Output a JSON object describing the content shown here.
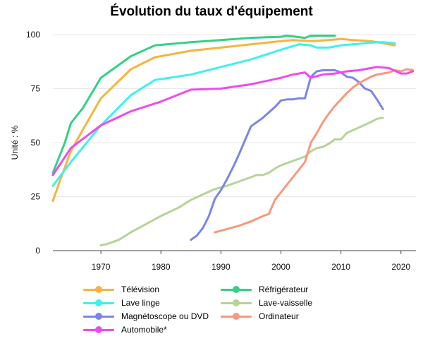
{
  "chart_data": {
    "type": "line",
    "title": "Évolution du taux d'équipement",
    "ylabel": "Unité : %",
    "xlabel": "",
    "xlim": [
      1962,
      2022.5
    ],
    "ylim": [
      0,
      100
    ],
    "xticks": [
      1970,
      1980,
      1990,
      2000,
      2010,
      2020
    ],
    "yticks": [
      0,
      25,
      50,
      75,
      100
    ],
    "grid": "horizontal",
    "legend_position": "bottom",
    "series": [
      {
        "name": "Télévision",
        "color": "#f6b43d",
        "points": [
          [
            1962,
            23
          ],
          [
            1963,
            31
          ],
          [
            1965,
            46
          ],
          [
            1967,
            56
          ],
          [
            1970,
            70.5
          ],
          [
            1975,
            84
          ],
          [
            1979,
            89.5
          ],
          [
            1985,
            92.5
          ],
          [
            1990,
            94
          ],
          [
            1995,
            95.5
          ],
          [
            2000,
            97
          ],
          [
            2002,
            97.5
          ],
          [
            2005,
            97
          ],
          [
            2008,
            97.5
          ],
          [
            2010,
            98
          ],
          [
            2012,
            97.5
          ],
          [
            2015,
            97
          ],
          [
            2017,
            96
          ],
          [
            2019,
            95
          ]
        ]
      },
      {
        "name": "Réfrigérateur",
        "color": "#34d086",
        "points": [
          [
            1962,
            36
          ],
          [
            1964,
            50
          ],
          [
            1965,
            59
          ],
          [
            1967,
            66
          ],
          [
            1970,
            80
          ],
          [
            1972,
            84
          ],
          [
            1975,
            90
          ],
          [
            1979,
            95
          ],
          [
            1985,
            96.5
          ],
          [
            1990,
            97.5
          ],
          [
            1995,
            98.5
          ],
          [
            2000,
            99
          ],
          [
            2001,
            99.5
          ],
          [
            2004,
            98.5
          ],
          [
            2005,
            99.5
          ],
          [
            2009,
            99.5
          ]
        ]
      },
      {
        "name": "Lave linge",
        "color": "#3ff1ec",
        "points": [
          [
            1962,
            30
          ],
          [
            1965,
            41
          ],
          [
            1970,
            58
          ],
          [
            1975,
            72
          ],
          [
            1979,
            79
          ],
          [
            1985,
            81.5
          ],
          [
            1990,
            85
          ],
          [
            1995,
            88.5
          ],
          [
            2000,
            93
          ],
          [
            2003,
            95.5
          ],
          [
            2005,
            95
          ],
          [
            2006,
            94
          ],
          [
            2008,
            94
          ],
          [
            2009,
            94.5
          ],
          [
            2010,
            95
          ],
          [
            2012,
            95.5
          ],
          [
            2014,
            96
          ],
          [
            2016,
            96.5
          ],
          [
            2017,
            96.5
          ],
          [
            2019,
            96
          ]
        ]
      },
      {
        "name": "Lave-vaisselle",
        "color": "#b7d399",
        "points": [
          [
            1970,
            2.5
          ],
          [
            1971,
            3
          ],
          [
            1973,
            5
          ],
          [
            1975,
            8.5
          ],
          [
            1978,
            13
          ],
          [
            1980,
            16
          ],
          [
            1983,
            20
          ],
          [
            1985,
            23.5
          ],
          [
            1987,
            26
          ],
          [
            1989,
            28.5
          ],
          [
            1991,
            30
          ],
          [
            1993,
            32
          ],
          [
            1995,
            34
          ],
          [
            1996,
            35
          ],
          [
            1997,
            35
          ],
          [
            1998,
            36
          ],
          [
            1999,
            38
          ],
          [
            2000,
            39.5
          ],
          [
            2002,
            41.5
          ],
          [
            2004,
            43.5
          ],
          [
            2005,
            46
          ],
          [
            2006,
            47.5
          ],
          [
            2007,
            48
          ],
          [
            2008,
            49.5
          ],
          [
            2009,
            51.5
          ],
          [
            2010,
            51.5
          ],
          [
            2011,
            54.5
          ],
          [
            2013,
            57
          ],
          [
            2015,
            59.5
          ],
          [
            2016,
            61
          ],
          [
            2017,
            61.5
          ]
        ]
      },
      {
        "name": "Magnétoscope ou DVD",
        "color": "#7b85e8",
        "points": [
          [
            1985,
            5
          ],
          [
            1986,
            7
          ],
          [
            1987,
            10.5
          ],
          [
            1988,
            16
          ],
          [
            1989,
            24
          ],
          [
            1990,
            28
          ],
          [
            1991,
            33
          ],
          [
            1992,
            38.5
          ],
          [
            1993,
            44.5
          ],
          [
            1994,
            51
          ],
          [
            1995,
            57.5
          ],
          [
            1996,
            59.5
          ],
          [
            1997,
            61.5
          ],
          [
            1998,
            64
          ],
          [
            1999,
            66.5
          ],
          [
            2000,
            69.5
          ],
          [
            2001,
            70
          ],
          [
            2002,
            70
          ],
          [
            2003,
            70.5
          ],
          [
            2004,
            70.5
          ],
          [
            2005,
            80.5
          ],
          [
            2006,
            83
          ],
          [
            2007,
            83.5
          ],
          [
            2008,
            83.5
          ],
          [
            2009,
            83.5
          ],
          [
            2010,
            82.5
          ],
          [
            2011,
            80.5
          ],
          [
            2012,
            80
          ],
          [
            2013,
            78
          ],
          [
            2014,
            75
          ],
          [
            2015,
            74
          ],
          [
            2016,
            70
          ],
          [
            2017,
            65.5
          ]
        ]
      },
      {
        "name": "Ordinateur",
        "color": "#f8987c",
        "points": [
          [
            1989,
            8.5
          ],
          [
            1991,
            10
          ],
          [
            1993,
            11.5
          ],
          [
            1995,
            13.5
          ],
          [
            1997,
            16
          ],
          [
            1998,
            17
          ],
          [
            1999,
            23.5
          ],
          [
            2000,
            27
          ],
          [
            2001,
            30.5
          ],
          [
            2002,
            34
          ],
          [
            2003,
            37.5
          ],
          [
            2004,
            41
          ],
          [
            2005,
            50
          ],
          [
            2006,
            54.5
          ],
          [
            2007,
            59.5
          ],
          [
            2008,
            63.5
          ],
          [
            2009,
            67
          ],
          [
            2010,
            70
          ],
          [
            2011,
            73
          ],
          [
            2012,
            75.5
          ],
          [
            2013,
            77.5
          ],
          [
            2014,
            79
          ],
          [
            2015,
            80.5
          ],
          [
            2016,
            81.5
          ],
          [
            2017,
            82
          ],
          [
            2018,
            82.5
          ],
          [
            2019,
            83.5
          ],
          [
            2020,
            83
          ],
          [
            2021,
            84
          ],
          [
            2022,
            83.5
          ]
        ]
      },
      {
        "name": "Automobile*",
        "color": "#ee4bef",
        "points": [
          [
            1962,
            35
          ],
          [
            1965,
            47.5
          ],
          [
            1970,
            58
          ],
          [
            1975,
            64.5
          ],
          [
            1980,
            69
          ],
          [
            1985,
            74.5
          ],
          [
            1990,
            75
          ],
          [
            1995,
            77
          ],
          [
            2000,
            80
          ],
          [
            2002,
            81.5
          ],
          [
            2004,
            82.5
          ],
          [
            2005,
            80
          ],
          [
            2007,
            81.5
          ],
          [
            2009,
            82
          ],
          [
            2011,
            83
          ],
          [
            2013,
            83.5
          ],
          [
            2015,
            84.5
          ],
          [
            2016,
            85
          ],
          [
            2018,
            84.5
          ],
          [
            2020,
            82
          ],
          [
            2021,
            82
          ],
          [
            2022,
            83
          ]
        ]
      }
    ]
  }
}
